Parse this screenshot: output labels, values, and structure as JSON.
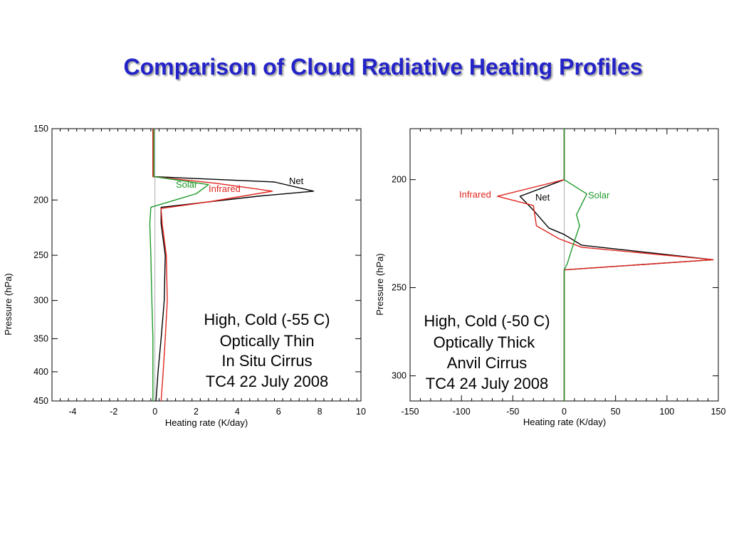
{
  "title": "Comparison of Cloud Radiative Heating Profiles",
  "colors": {
    "title": "#2323c8",
    "net": "#000000",
    "infrared": "#e0251e",
    "solar": "#1e9a2a"
  },
  "chart_data": [
    {
      "type": "line",
      "xlabel": "Heating rate (K/day)",
      "ylabel": "Pressure (hPa)",
      "xlim": [
        -5,
        10
      ],
      "ylim": [
        450,
        150
      ],
      "yscale": "log",
      "xticks": [
        -4,
        -2,
        0,
        2,
        4,
        6,
        8,
        10
      ],
      "yticks": [
        150,
        200,
        250,
        300,
        350,
        400,
        450
      ],
      "annotation": [
        "High, Cold (-55 C)",
        "Optically Thin",
        "In Situ Cirrus",
        "TC4 22 July 2008"
      ],
      "series": [
        {
          "name": "Net",
          "color": "#000000",
          "points": [
            [
              -0.1,
              150
            ],
            [
              -0.1,
              182
            ],
            [
              5.8,
              186
            ],
            [
              7.7,
              193
            ],
            [
              5.0,
              197
            ],
            [
              0.3,
              206
            ],
            [
              0.3,
              220
            ],
            [
              0.5,
              250
            ],
            [
              0.45,
              300
            ],
            [
              0.3,
              350
            ],
            [
              0.15,
              400
            ],
            [
              0.05,
              450
            ]
          ]
        },
        {
          "name": "Infrared",
          "color": "#e0251e",
          "points": [
            [
              -0.1,
              150
            ],
            [
              -0.1,
              182
            ],
            [
              3.0,
              187
            ],
            [
              5.7,
              193
            ],
            [
              2.8,
              201
            ],
            [
              0.3,
              207
            ],
            [
              0.35,
              220
            ],
            [
              0.55,
              250
            ],
            [
              0.6,
              300
            ],
            [
              0.5,
              350
            ],
            [
              0.4,
              400
            ],
            [
              0.3,
              450
            ]
          ]
        },
        {
          "name": "Solar",
          "color": "#1e9a2a",
          "points": [
            [
              -0.05,
              150
            ],
            [
              -0.05,
              182
            ],
            [
              2.6,
              188
            ],
            [
              2.0,
              195
            ],
            [
              -0.2,
              206
            ],
            [
              -0.25,
              220
            ],
            [
              -0.2,
              250
            ],
            [
              -0.15,
              300
            ],
            [
              -0.1,
              350
            ],
            [
              -0.1,
              400
            ],
            [
              -0.1,
              450
            ]
          ]
        }
      ]
    },
    {
      "type": "line",
      "xlabel": "Heating rate (K/day)",
      "ylabel": "Pressure (hPa)",
      "xlim": [
        -150,
        150
      ],
      "ylim": [
        316,
        180
      ],
      "yscale": "log",
      "xticks": [
        -150,
        -100,
        -50,
        0,
        50,
        100,
        150
      ],
      "yticks": [
        200,
        250,
        300
      ],
      "annotation": [
        "High, Cold (-50 C)",
        "Optically Thick",
        "Anvil Cirrus",
        "TC4 24 July 2008"
      ],
      "series": [
        {
          "name": "Net",
          "color": "#000000",
          "points": [
            [
              0,
              180
            ],
            [
              0,
              200
            ],
            [
              -43,
              207
            ],
            [
              -30,
              213
            ],
            [
              -15,
              221
            ],
            [
              0,
              224
            ],
            [
              17,
              229
            ],
            [
              145,
              236
            ],
            [
              0,
              241
            ],
            [
              0,
              250
            ],
            [
              0,
              300
            ],
            [
              0,
              316
            ]
          ]
        },
        {
          "name": "Infrared",
          "color": "#e0251e",
          "points": [
            [
              0,
              180
            ],
            [
              0,
              200
            ],
            [
              -65,
              207
            ],
            [
              -30,
              211
            ],
            [
              -27,
              220
            ],
            [
              -5,
              226
            ],
            [
              17,
              230
            ],
            [
              145,
              236
            ],
            [
              0,
              241
            ],
            [
              0,
              250
            ],
            [
              0,
              300
            ],
            [
              0,
              316
            ]
          ]
        },
        {
          "name": "Solar",
          "color": "#1e9a2a",
          "points": [
            [
              0,
              180
            ],
            [
              0,
              200
            ],
            [
              22,
              206
            ],
            [
              12,
              215
            ],
            [
              15,
              220
            ],
            [
              8,
              230
            ],
            [
              3,
              238
            ],
            [
              0,
              241
            ],
            [
              0,
              250
            ],
            [
              0,
              300
            ],
            [
              0,
              316
            ]
          ]
        }
      ]
    }
  ]
}
